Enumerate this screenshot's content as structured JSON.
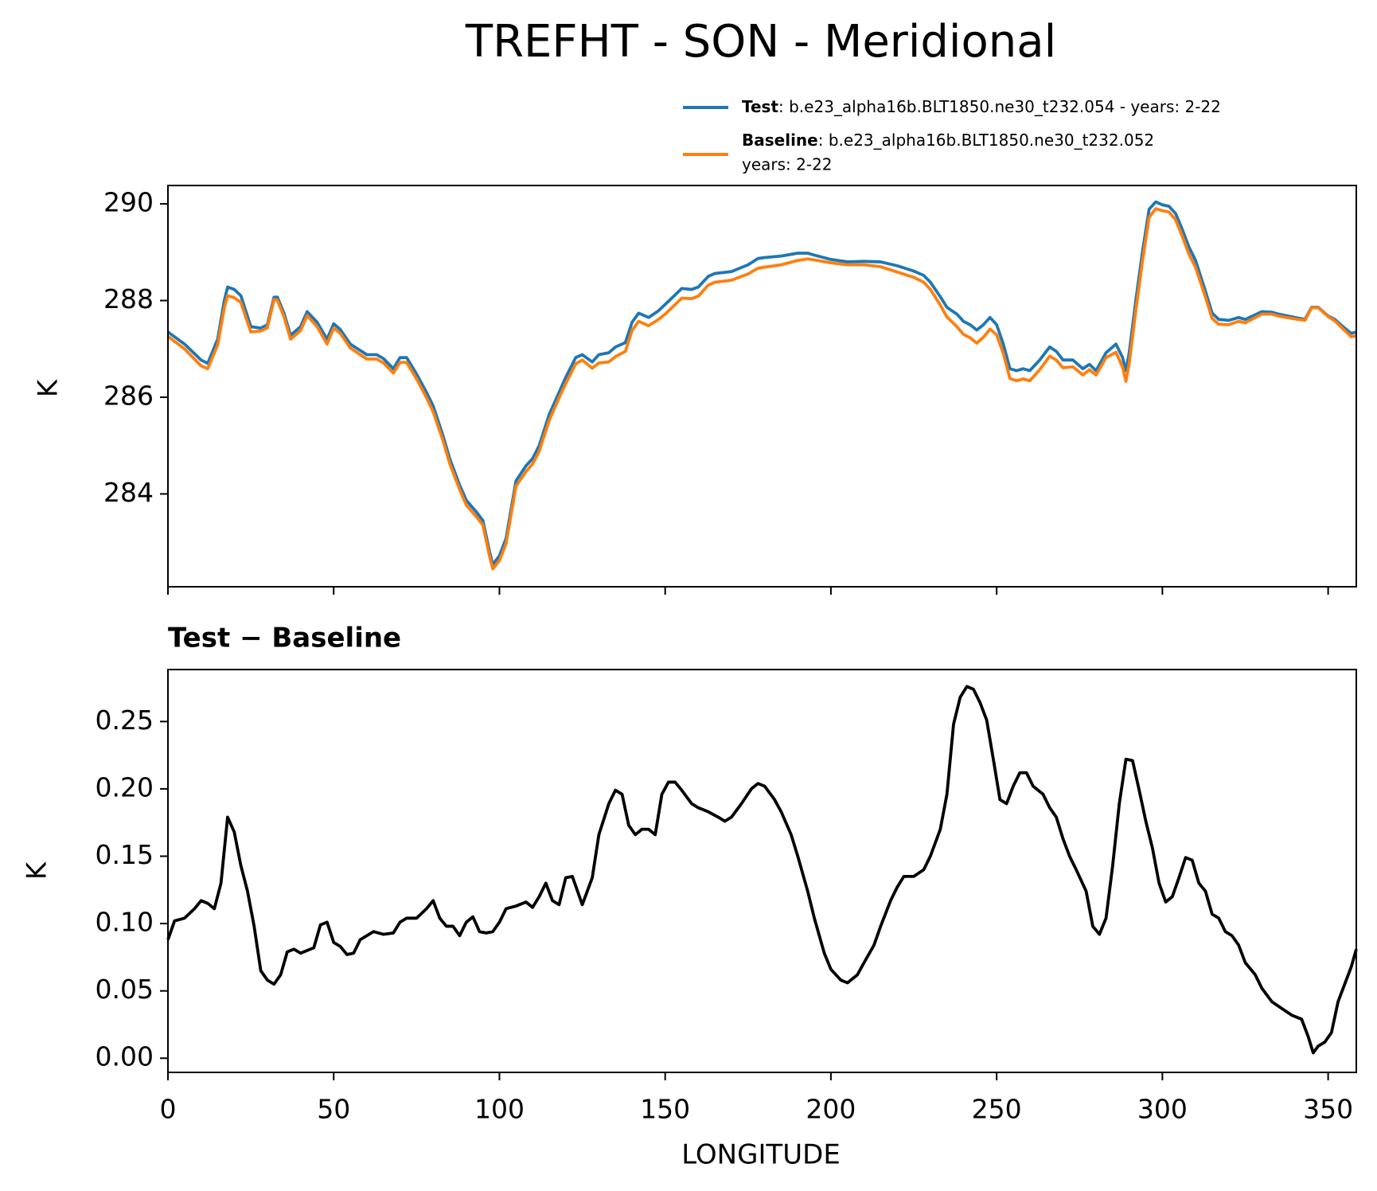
{
  "chart_data": [
    {
      "type": "line",
      "title": "TREFHT - SON - Meridional",
      "ylabel": "K",
      "xlim": [
        0,
        358.5
      ],
      "ylim": [
        282.08,
        290.38
      ],
      "yticks": [
        284,
        286,
        288,
        290
      ],
      "x": [
        0,
        5,
        10,
        12,
        15,
        17,
        18,
        20,
        22,
        25,
        28,
        30,
        32,
        33,
        35,
        37,
        40,
        42,
        45,
        48,
        50,
        52,
        55,
        60,
        63,
        65,
        68,
        70,
        72,
        75,
        78,
        80,
        83,
        85,
        88,
        90,
        93,
        95,
        97,
        98,
        100,
        102,
        105,
        108,
        110,
        112,
        115,
        118,
        120,
        123,
        125,
        128,
        130,
        133,
        135,
        138,
        140,
        142,
        145,
        148,
        150,
        152,
        155,
        158,
        160,
        163,
        165,
        170,
        175,
        178,
        180,
        185,
        190,
        193,
        195,
        200,
        205,
        210,
        215,
        220,
        225,
        228,
        230,
        233,
        235,
        238,
        240,
        242,
        244,
        246,
        248,
        250,
        252,
        254,
        256,
        258,
        260,
        263,
        266,
        268,
        270,
        273,
        276,
        278,
        280,
        283,
        286,
        288,
        289,
        290,
        292,
        294,
        296,
        298,
        300,
        302,
        304,
        306,
        308,
        310,
        313,
        315,
        317,
        320,
        323,
        325,
        330,
        333,
        335,
        340,
        343,
        345,
        347,
        350,
        352,
        355,
        357,
        358.5
      ],
      "series": [
        {
          "name": "Test",
          "description": [
            ": b.e23_alpha16b.BLT1850.ne30_t232.054 - years: 2-22"
          ],
          "color": "#1f77b4",
          "values": [
            287.35,
            287.1,
            286.77,
            286.7,
            287.2,
            288.0,
            288.28,
            288.23,
            288.1,
            287.46,
            287.43,
            287.5,
            288.07,
            288.07,
            287.74,
            287.28,
            287.46,
            287.77,
            287.55,
            287.2,
            287.52,
            287.4,
            287.1,
            286.88,
            286.88,
            286.8,
            286.59,
            286.82,
            286.82,
            286.48,
            286.1,
            285.82,
            285.2,
            284.73,
            284.18,
            283.87,
            283.63,
            283.45,
            282.81,
            282.54,
            282.72,
            283.08,
            284.27,
            284.58,
            284.73,
            285.0,
            285.64,
            286.1,
            286.41,
            286.82,
            286.88,
            286.73,
            286.88,
            286.92,
            287.04,
            287.13,
            287.55,
            287.74,
            287.65,
            287.79,
            287.92,
            288.05,
            288.25,
            288.23,
            288.28,
            288.5,
            288.56,
            288.6,
            288.74,
            288.87,
            288.89,
            288.92,
            288.98,
            288.98,
            288.94,
            288.85,
            288.8,
            288.81,
            288.8,
            288.72,
            288.61,
            288.52,
            288.38,
            288.08,
            287.86,
            287.72,
            287.57,
            287.5,
            287.39,
            287.5,
            287.65,
            287.5,
            287.1,
            286.59,
            286.55,
            286.59,
            286.55,
            286.77,
            287.04,
            286.95,
            286.77,
            286.77,
            286.59,
            286.68,
            286.55,
            286.92,
            287.1,
            286.82,
            286.55,
            286.92,
            288.01,
            289.01,
            289.89,
            290.04,
            289.98,
            289.95,
            289.8,
            289.47,
            289.11,
            288.83,
            288.19,
            287.74,
            287.61,
            287.59,
            287.65,
            287.61,
            287.77,
            287.76,
            287.72,
            287.65,
            287.61,
            287.86,
            287.86,
            287.68,
            287.61,
            287.43,
            287.32,
            287.35
          ]
        },
        {
          "name": "Baseline",
          "description": [
            ": b.e23_alpha16b.BLT1850.ne30_t232.052",
            "years: 2-22"
          ],
          "color": "#ff7f0e",
          "values": [
            287.26,
            287.0,
            286.65,
            286.59,
            287.08,
            287.85,
            288.1,
            288.06,
            287.96,
            287.35,
            287.37,
            287.44,
            288.02,
            288.01,
            287.67,
            287.2,
            287.38,
            287.69,
            287.46,
            287.1,
            287.43,
            287.32,
            287.02,
            286.79,
            286.79,
            286.71,
            286.5,
            286.72,
            286.72,
            286.38,
            285.99,
            285.7,
            285.1,
            284.63,
            284.09,
            283.77,
            283.53,
            283.36,
            282.72,
            282.45,
            282.62,
            282.97,
            284.16,
            284.46,
            284.62,
            284.88,
            285.52,
            285.99,
            286.28,
            286.69,
            286.77,
            286.6,
            286.71,
            286.73,
            286.84,
            286.95,
            287.38,
            287.57,
            287.48,
            287.61,
            287.72,
            287.85,
            288.05,
            288.04,
            288.09,
            288.32,
            288.38,
            288.42,
            288.55,
            288.67,
            288.69,
            288.74,
            288.83,
            288.86,
            288.84,
            288.78,
            288.74,
            288.74,
            288.7,
            288.59,
            288.48,
            288.38,
            288.23,
            287.91,
            287.66,
            287.46,
            287.3,
            287.23,
            287.12,
            287.24,
            287.41,
            287.29,
            286.91,
            286.39,
            286.34,
            286.38,
            286.34,
            286.57,
            286.85,
            286.77,
            286.61,
            286.63,
            286.46,
            286.57,
            286.46,
            286.82,
            286.93,
            286.62,
            286.33,
            286.7,
            287.8,
            288.82,
            289.72,
            289.9,
            289.86,
            289.83,
            289.67,
            289.33,
            288.96,
            288.69,
            288.07,
            287.63,
            287.51,
            287.5,
            287.57,
            287.54,
            287.72,
            287.72,
            287.68,
            287.62,
            287.59,
            287.85,
            287.85,
            287.67,
            287.58,
            287.38,
            287.25,
            287.27
          ]
        }
      ]
    },
    {
      "type": "line",
      "title": "Test − Baseline",
      "xlabel": "LONGITUDE",
      "ylabel": "K",
      "xlim": [
        0,
        358.5
      ],
      "xticks": [
        0,
        50,
        100,
        150,
        200,
        250,
        300,
        350
      ],
      "ylim": [
        -0.0105,
        0.2886
      ],
      "yticks": [
        {
          "value": 0,
          "label": "0.00"
        },
        0.05,
        {
          "value": 0.1,
          "label": "0.10"
        },
        0.15,
        {
          "value": 0.2,
          "label": "0.20"
        },
        0.25
      ],
      "x": [
        0,
        2,
        5,
        8,
        10,
        12,
        14,
        16,
        18,
        20,
        22,
        24,
        26,
        28,
        30,
        32,
        34,
        36,
        38,
        40,
        42,
        44,
        46,
        48,
        50,
        52,
        54,
        56,
        58,
        60,
        62,
        65,
        68,
        70,
        72,
        75,
        78,
        80,
        82,
        84,
        86,
        88,
        90,
        92,
        94,
        96,
        98,
        100,
        102,
        105,
        108,
        110,
        112,
        114,
        116,
        118,
        120,
        122,
        125,
        128,
        130,
        133,
        135,
        137,
        139,
        141,
        143,
        145,
        147,
        149,
        151,
        153,
        155,
        158,
        160,
        163,
        166,
        168,
        170,
        173,
        176,
        178,
        180,
        183,
        185,
        188,
        190,
        193,
        195,
        198,
        200,
        203,
        205,
        208,
        210,
        213,
        215,
        218,
        220,
        222,
        225,
        228,
        230,
        233,
        235,
        237,
        239,
        241,
        243,
        245,
        247,
        249,
        251,
        253,
        255,
        257,
        259,
        261,
        264,
        266,
        268,
        270,
        272,
        274,
        277,
        279,
        281,
        283,
        285,
        287,
        289,
        291,
        293,
        295,
        297,
        299,
        301,
        303,
        305,
        307,
        309,
        311,
        313,
        315,
        317,
        319,
        321,
        323,
        325,
        328,
        330,
        333,
        336,
        339,
        342,
        344,
        345.5,
        347,
        349,
        351,
        353,
        355,
        357,
        358.5
      ],
      "series": [
        {
          "name": "Test − Baseline",
          "color": "#000000",
          "values": [
            0.088,
            0.102,
            0.104,
            0.111,
            0.117,
            0.115,
            0.111,
            0.13,
            0.179,
            0.168,
            0.143,
            0.124,
            0.098,
            0.065,
            0.058,
            0.055,
            0.062,
            0.079,
            0.081,
            0.078,
            0.08,
            0.082,
            0.099,
            0.101,
            0.086,
            0.083,
            0.077,
            0.078,
            0.088,
            0.091,
            0.094,
            0.092,
            0.093,
            0.101,
            0.104,
            0.104,
            0.111,
            0.117,
            0.104,
            0.098,
            0.098,
            0.091,
            0.101,
            0.105,
            0.094,
            0.093,
            0.094,
            0.101,
            0.111,
            0.113,
            0.116,
            0.112,
            0.12,
            0.13,
            0.117,
            0.114,
            0.134,
            0.135,
            0.114,
            0.134,
            0.166,
            0.189,
            0.199,
            0.196,
            0.173,
            0.166,
            0.17,
            0.17,
            0.166,
            0.196,
            0.205,
            0.205,
            0.199,
            0.189,
            0.186,
            0.183,
            0.179,
            0.176,
            0.179,
            0.189,
            0.2,
            0.204,
            0.202,
            0.192,
            0.183,
            0.166,
            0.15,
            0.124,
            0.104,
            0.078,
            0.066,
            0.058,
            0.056,
            0.062,
            0.071,
            0.084,
            0.098,
            0.117,
            0.127,
            0.135,
            0.135,
            0.14,
            0.15,
            0.17,
            0.196,
            0.248,
            0.268,
            0.276,
            0.274,
            0.264,
            0.251,
            0.222,
            0.192,
            0.189,
            0.202,
            0.212,
            0.212,
            0.202,
            0.196,
            0.186,
            0.179,
            0.163,
            0.15,
            0.14,
            0.124,
            0.098,
            0.092,
            0.104,
            0.143,
            0.189,
            0.222,
            0.221,
            0.199,
            0.176,
            0.156,
            0.13,
            0.116,
            0.12,
            0.134,
            0.149,
            0.147,
            0.13,
            0.124,
            0.107,
            0.104,
            0.094,
            0.091,
            0.084,
            0.071,
            0.062,
            0.052,
            0.042,
            0.037,
            0.032,
            0.029,
            0.016,
            0.004,
            0.009,
            0.012,
            0.019,
            0.042,
            0.055,
            0.068,
            0.081
          ]
        }
      ]
    }
  ]
}
